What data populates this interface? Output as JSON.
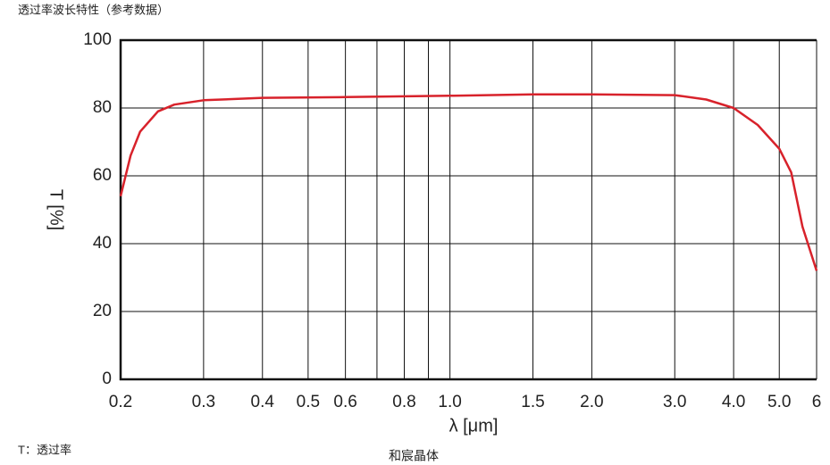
{
  "chart_data": {
    "type": "line",
    "title": "透过率波长特性（参考数据）",
    "ylabel": "T [%]",
    "xlabel": "λ [μm]",
    "note": "T：透过率",
    "brand": "和宸晶体",
    "xscale": "log",
    "grid": true,
    "xlim": [
      0.2,
      6
    ],
    "ylim": [
      0,
      100
    ],
    "xticks": [
      0.2,
      0.3,
      0.4,
      0.5,
      0.6,
      0.8,
      {
        "value": 1,
        "label": "1.0"
      },
      1.5,
      {
        "value": 2,
        "label": "2.0"
      },
      {
        "value": 3,
        "label": "3.0"
      },
      {
        "value": 4,
        "label": "4.0"
      },
      {
        "value": 5,
        "label": "5.0"
      },
      6
    ],
    "xminor": [
      0.7,
      0.9
    ],
    "yticks": [
      0,
      20,
      40,
      60,
      80,
      100
    ],
    "x": [
      0.2,
      0.21,
      0.22,
      0.24,
      0.26,
      0.3,
      0.4,
      0.6,
      1.0,
      1.5,
      2.0,
      3.0,
      3.5,
      4.0,
      4.5,
      5.0,
      5.3,
      5.6,
      6
    ],
    "series": [
      {
        "color": "#d8222b",
        "values": [
          54,
          66,
          73,
          79,
          81,
          82.3,
          83,
          83.2,
          83.6,
          84,
          84,
          83.8,
          82.5,
          80,
          75,
          68,
          61,
          45,
          32
        ]
      }
    ]
  }
}
